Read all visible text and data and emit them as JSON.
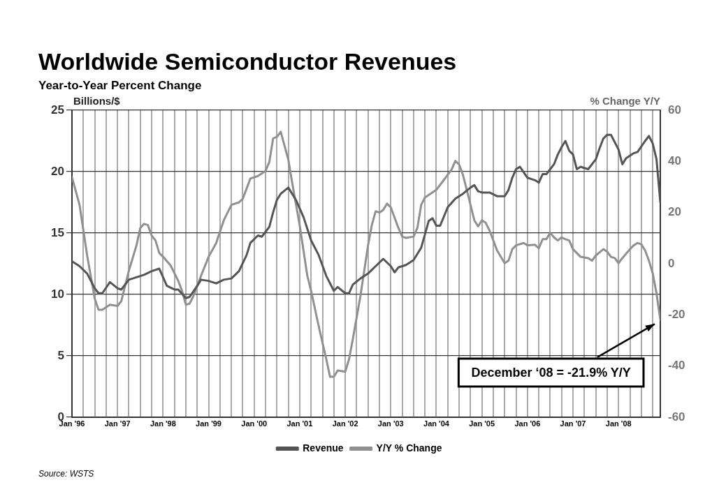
{
  "chart_data": {
    "type": "line",
    "title": "Worldwide Semiconductor Revenues",
    "subtitle": "Year-to-Year Percent Change",
    "ylabel": "Billions/$",
    "y2label": "% Change Y/Y",
    "series": [
      {
        "name": "Revenue",
        "color": "#555555",
        "x": [
          "1996-01",
          "1996-03",
          "1996-05",
          "1996-07",
          "1996-08",
          "1996-09",
          "1996-11",
          "1997-01",
          "1997-02",
          "1997-04",
          "1997-06",
          "1997-08",
          "1997-10",
          "1997-12",
          "1998-02",
          "1998-04",
          "1998-05",
          "1998-07",
          "1998-08",
          "1998-10",
          "1998-11",
          "1999-01",
          "1999-03",
          "1999-05",
          "1999-07",
          "1999-09",
          "1999-11",
          "1999-12",
          "2000-02",
          "2000-03",
          "2000-04",
          "2000-05",
          "2000-06",
          "2000-07",
          "2000-08",
          "2000-10",
          "2000-12",
          "2001-02",
          "2001-04",
          "2001-06",
          "2001-08",
          "2001-10",
          "2001-11",
          "2002-01",
          "2002-02",
          "2002-03",
          "2002-05",
          "2002-07",
          "2002-09",
          "2002-11",
          "2003-01",
          "2003-02",
          "2003-03",
          "2003-05",
          "2003-07",
          "2003-09",
          "2003-11",
          "2003-12",
          "2004-01",
          "2004-02",
          "2004-04",
          "2004-06",
          "2004-08",
          "2004-10",
          "2004-11",
          "2004-12",
          "2005-01",
          "2005-03",
          "2005-05",
          "2005-07",
          "2005-08",
          "2005-09",
          "2005-10",
          "2005-11",
          "2006-01",
          "2006-03",
          "2006-04",
          "2006-05",
          "2006-06",
          "2006-08",
          "2006-09",
          "2006-10",
          "2006-11",
          "2006-12",
          "2007-01",
          "2007-02",
          "2007-03",
          "2007-05",
          "2007-07",
          "2007-08",
          "2007-09",
          "2007-10",
          "2007-11",
          "2008-01",
          "2008-02",
          "2008-03",
          "2008-05",
          "2008-06",
          "2008-08",
          "2008-09",
          "2008-10",
          "2008-11",
          "2008-12"
        ],
        "values": [
          12.7,
          12.3,
          11.7,
          10.5,
          10.1,
          10.1,
          11.0,
          10.5,
          10.4,
          11.2,
          11.4,
          11.6,
          11.9,
          12.1,
          10.7,
          10.4,
          10.4,
          9.7,
          9.8,
          10.7,
          11.2,
          11.1,
          10.9,
          11.2,
          11.3,
          11.9,
          13.2,
          14.2,
          14.8,
          14.7,
          15.1,
          15.5,
          16.7,
          17.7,
          18.2,
          18.7,
          17.7,
          16.3,
          14.4,
          13.2,
          11.5,
          10.3,
          10.6,
          10.1,
          10.1,
          10.8,
          11.3,
          11.7,
          12.3,
          12.9,
          12.3,
          11.8,
          12.2,
          12.4,
          12.8,
          13.8,
          16.0,
          16.2,
          15.6,
          15.6,
          17.1,
          17.8,
          18.2,
          18.7,
          18.9,
          18.4,
          18.3,
          18.3,
          18.0,
          18.0,
          18.5,
          19.5,
          20.2,
          20.4,
          19.5,
          19.3,
          19.1,
          19.8,
          19.8,
          20.6,
          21.4,
          22.0,
          22.5,
          21.7,
          21.4,
          20.2,
          20.4,
          20.2,
          21.0,
          21.9,
          22.7,
          23.0,
          23.0,
          21.8,
          20.6,
          21.1,
          21.5,
          21.6,
          22.5,
          22.9,
          22.3,
          21.0,
          17.5
        ]
      },
      {
        "name": "Y/Y % Change",
        "color": "#909090",
        "axis": "y2",
        "x": [
          "1996-01",
          "1996-03",
          "1996-05",
          "1996-07",
          "1996-08",
          "1996-09",
          "1996-11",
          "1997-01",
          "1997-02",
          "1997-04",
          "1997-06",
          "1997-07",
          "1997-08",
          "1997-09",
          "1997-10",
          "1997-11",
          "1997-12",
          "1998-01",
          "1998-03",
          "1998-05",
          "1998-06",
          "1998-07",
          "1998-08",
          "1998-09",
          "1998-11",
          "1999-01",
          "1999-03",
          "1999-05",
          "1999-07",
          "1999-09",
          "1999-10",
          "1999-12",
          "2000-02",
          "2000-04",
          "2000-05",
          "2000-06",
          "2000-07",
          "2000-08",
          "2000-10",
          "2000-11",
          "2001-01",
          "2001-03",
          "2001-04",
          "2001-06",
          "2001-08",
          "2001-09",
          "2001-10",
          "2001-11",
          "2002-01",
          "2002-02",
          "2002-03",
          "2002-05",
          "2002-07",
          "2002-08",
          "2002-09",
          "2002-10",
          "2002-11",
          "2002-12",
          "2003-01",
          "2003-03",
          "2003-04",
          "2003-05",
          "2003-07",
          "2003-08",
          "2003-09",
          "2003-10",
          "2003-12",
          "2004-01",
          "2004-03",
          "2004-05",
          "2004-06",
          "2004-07",
          "2004-08",
          "2004-10",
          "2004-11",
          "2004-12",
          "2005-01",
          "2005-02",
          "2005-03",
          "2005-05",
          "2005-07",
          "2005-08",
          "2005-09",
          "2005-10",
          "2005-12",
          "2006-01",
          "2006-03",
          "2006-04",
          "2006-05",
          "2006-06",
          "2006-07",
          "2006-08",
          "2006-09",
          "2006-10",
          "2006-11",
          "2006-12",
          "2007-01",
          "2007-03",
          "2007-05",
          "2007-06",
          "2007-07",
          "2007-09",
          "2007-10",
          "2007-11",
          "2007-12",
          "2008-01",
          "2008-02",
          "2008-04",
          "2008-05",
          "2008-06",
          "2008-07",
          "2008-08",
          "2008-09",
          "2008-10",
          "2008-11",
          "2008-12"
        ],
        "values": [
          33.8,
          23,
          3.2,
          -13.6,
          -18,
          -18,
          -16,
          -16.5,
          -14.6,
          -2.7,
          7.2,
          14,
          15.6,
          15.1,
          11,
          9.1,
          4.2,
          2.7,
          -0.7,
          -6.7,
          -10.6,
          -16,
          -15.6,
          -12.6,
          -4.7,
          2.7,
          8.1,
          17,
          23,
          24,
          25.4,
          33.3,
          34.3,
          36.3,
          39.8,
          49,
          49.6,
          51.6,
          40.7,
          31.8,
          15,
          -4.7,
          -10.6,
          -24.4,
          -37.3,
          -44.2,
          -44.2,
          -41.7,
          -42.2,
          -37.3,
          -29.4,
          -12.6,
          7.2,
          15.1,
          20.5,
          20,
          21,
          23.5,
          22,
          14,
          10.6,
          10.1,
          10.6,
          14,
          23,
          25.9,
          27.9,
          28.9,
          32.8,
          36.8,
          40.2,
          38.8,
          34.8,
          23,
          17,
          14.6,
          17,
          16,
          13,
          5.2,
          0.2,
          1.2,
          5.7,
          7.2,
          8.1,
          7.2,
          7.4,
          6,
          9.6,
          9.6,
          12.1,
          10.3,
          9.1,
          10.3,
          9.6,
          9.1,
          5.7,
          2.7,
          2.2,
          1.2,
          3.2,
          5.7,
          4.7,
          2.7,
          2.2,
          0.2,
          2.2,
          5.7,
          7.2,
          8.1,
          7.6,
          5.2,
          1.2,
          -3.7,
          -11.6,
          -21.9
        ]
      }
    ],
    "xlim": [
      "1996-01",
      "2008-12"
    ],
    "xticks": [
      {
        "value": "1996-01",
        "label": "Jan '96"
      },
      {
        "value": "1996-04",
        "label": null
      },
      {
        "value": "1996-07",
        "label": null
      },
      {
        "value": "1996-10",
        "label": null
      },
      {
        "value": "1997-01",
        "label": "Jan '97"
      },
      {
        "value": "1997-04",
        "label": null
      },
      {
        "value": "1997-07",
        "label": null
      },
      {
        "value": "1997-10",
        "label": null
      },
      {
        "value": "1998-01",
        "label": "Jan '98"
      },
      {
        "value": "1998-04",
        "label": null
      },
      {
        "value": "1998-07",
        "label": null
      },
      {
        "value": "1998-10",
        "label": null
      },
      {
        "value": "1999-01",
        "label": "Jan '99"
      },
      {
        "value": "1999-04",
        "label": null
      },
      {
        "value": "1999-07",
        "label": null
      },
      {
        "value": "1999-10",
        "label": null
      },
      {
        "value": "2000-01",
        "label": "Jan '00"
      },
      {
        "value": "2000-04",
        "label": null
      },
      {
        "value": "2000-07",
        "label": null
      },
      {
        "value": "2000-10",
        "label": null
      },
      {
        "value": "2001-01",
        "label": "Jan '01"
      },
      {
        "value": "2001-04",
        "label": null
      },
      {
        "value": "2001-07",
        "label": null
      },
      {
        "value": "2001-10",
        "label": null
      },
      {
        "value": "2002-01",
        "label": "Jan '02"
      },
      {
        "value": "2002-04",
        "label": null
      },
      {
        "value": "2002-07",
        "label": null
      },
      {
        "value": "2002-10",
        "label": null
      },
      {
        "value": "2003-01",
        "label": "Jan '03"
      },
      {
        "value": "2003-04",
        "label": null
      },
      {
        "value": "2003-07",
        "label": null
      },
      {
        "value": "2003-10",
        "label": null
      },
      {
        "value": "2004-01",
        "label": "Jan '04"
      },
      {
        "value": "2004-04",
        "label": null
      },
      {
        "value": "2004-07",
        "label": null
      },
      {
        "value": "2004-10",
        "label": null
      },
      {
        "value": "2005-01",
        "label": "Jan '05"
      },
      {
        "value": "2005-04",
        "label": null
      },
      {
        "value": "2005-07",
        "label": null
      },
      {
        "value": "2005-10",
        "label": null
      },
      {
        "value": "2006-01",
        "label": "Jan '06"
      },
      {
        "value": "2006-04",
        "label": null
      },
      {
        "value": "2006-07",
        "label": null
      },
      {
        "value": "2006-10",
        "label": null
      },
      {
        "value": "2007-01",
        "label": "Jan '07"
      },
      {
        "value": "2007-04",
        "label": null
      },
      {
        "value": "2007-07",
        "label": null
      },
      {
        "value": "2007-10",
        "label": null
      },
      {
        "value": "2008-01",
        "label": "Jan '08"
      },
      {
        "value": "2008-04",
        "label": null
      },
      {
        "value": "2008-07",
        "label": null
      },
      {
        "value": "2008-10",
        "label": null
      }
    ],
    "ylim": [
      0,
      25
    ],
    "yticks": [
      0,
      5,
      10,
      15,
      20,
      25
    ],
    "y2lim": [
      -60,
      60
    ],
    "y2ticks": [
      -60,
      -40,
      -20,
      0,
      20,
      40,
      60
    ],
    "grid": true,
    "legend": "bottom",
    "marker": "none",
    "line_style": "solid",
    "annotations": [
      "December ‘08 = -21.9% Y/Y",
      "Source: WSTS"
    ]
  }
}
